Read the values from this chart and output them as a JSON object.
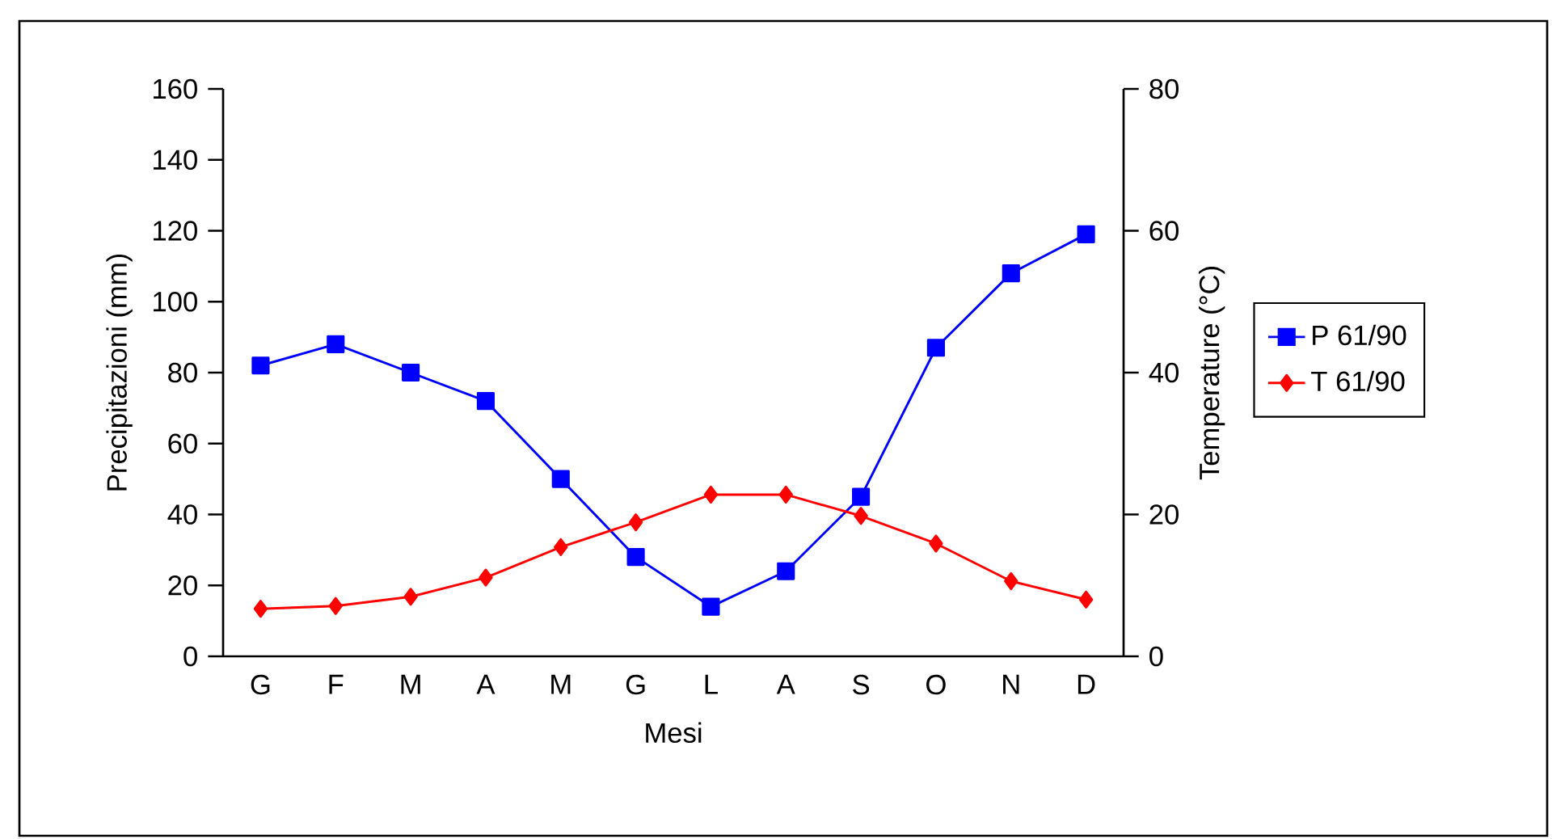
{
  "chart_data": {
    "type": "line",
    "xlabel": "Mesi",
    "ylabel": "Precipitazioni (mm)",
    "y2label": "Temperature (°C)",
    "categories": [
      "G",
      "F",
      "M",
      "A",
      "M",
      "G",
      "L",
      "A",
      "S",
      "O",
      "N",
      "D"
    ],
    "series": [
      {
        "name": "P 61/90",
        "color": "#0000ff",
        "marker": "square",
        "values": [
          82,
          88,
          80,
          72,
          50,
          28,
          14,
          24,
          45,
          87,
          108,
          119
        ]
      },
      {
        "name": "T 61/90",
        "color": "#ff0000",
        "marker": "diamond",
        "axis": "y2",
        "values": [
          6.7,
          7.1,
          8.4,
          11.1,
          15.4,
          18.9,
          22.8,
          22.8,
          19.8,
          15.9,
          10.6,
          8.0
        ]
      }
    ],
    "ylim": [
      0,
      160
    ],
    "yticks": [
      0,
      20,
      40,
      60,
      80,
      100,
      120,
      140,
      160
    ],
    "y2lim": [
      0,
      80
    ],
    "y2ticks": [
      0,
      20,
      40,
      60,
      80
    ],
    "legend": "right",
    "grid": false,
    "line_style": "solid"
  }
}
